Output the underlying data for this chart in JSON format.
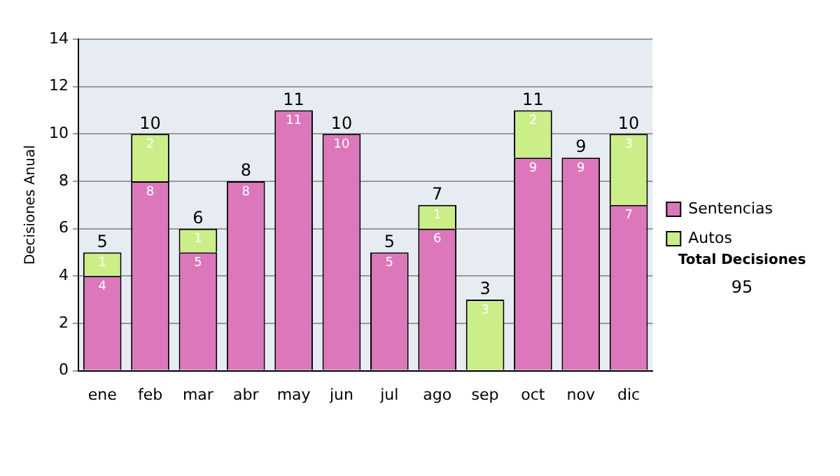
{
  "chart_data": {
    "type": "bar",
    "ylabel": "Decisiones Anual",
    "categories": [
      "ene",
      "feb",
      "mar",
      "abr",
      "may",
      "jun",
      "jul",
      "ago",
      "sep",
      "oct",
      "nov",
      "dic"
    ],
    "series": [
      {
        "name": "Sentencias",
        "color": "#dd77bb",
        "values": [
          4,
          8,
          5,
          8,
          11,
          10,
          5,
          6,
          null,
          9,
          9,
          7
        ]
      },
      {
        "name": "Autos",
        "color": "#ccee88",
        "values": [
          1,
          2,
          1,
          null,
          null,
          null,
          null,
          1,
          3,
          2,
          null,
          3
        ]
      }
    ],
    "stacked": true,
    "data_labels": true,
    "totals": [
      "5",
      "10",
      "6",
      "8",
      "11",
      "10",
      "5",
      "7",
      "3",
      "11",
      "9",
      "10"
    ],
    "ylim": [
      0,
      14
    ],
    "yticks": [
      0,
      2,
      4,
      6,
      8,
      10,
      12,
      14
    ],
    "grid": "y",
    "legend": "right",
    "annotations": [
      "Total Decisiones",
      "95"
    ]
  }
}
